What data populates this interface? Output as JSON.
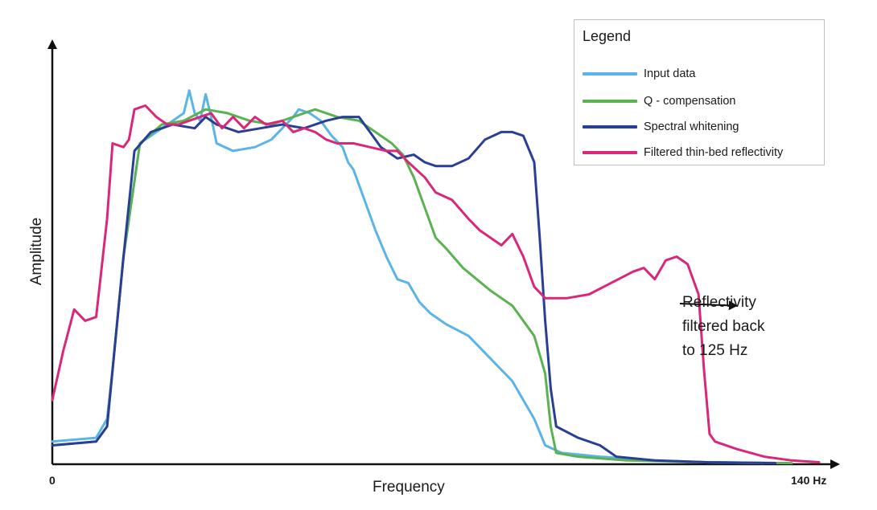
{
  "chart_data": {
    "type": "line",
    "title": "",
    "xlabel": "Frequency",
    "ylabel": "Amplitude",
    "x_ticks": [
      "0",
      "140 Hz"
    ],
    "xlim": [
      0,
      140
    ],
    "ylim": [
      0,
      1
    ],
    "grid": false,
    "legend": {
      "title": "Legend",
      "placement": "top-right"
    },
    "annotation": {
      "lines": [
        "Reflectivity",
        "filtered back",
        "to 125 Hz"
      ],
      "arrow_target_x": 125,
      "arrow_target_y": 0.42
    },
    "series": [
      {
        "name": "Input data",
        "color": "#5bb4e8",
        "points": [
          [
            0,
            0.06
          ],
          [
            8,
            0.07
          ],
          [
            10,
            0.12
          ],
          [
            11,
            0.25
          ],
          [
            13,
            0.55
          ],
          [
            16,
            0.85
          ],
          [
            19,
            0.88
          ],
          [
            22,
            0.91
          ],
          [
            24,
            0.93
          ],
          [
            25,
            0.99
          ],
          [
            26,
            0.93
          ],
          [
            27,
            0.91
          ],
          [
            28,
            0.98
          ],
          [
            29,
            0.92
          ],
          [
            30,
            0.85
          ],
          [
            33,
            0.83
          ],
          [
            37,
            0.84
          ],
          [
            40,
            0.86
          ],
          [
            42,
            0.89
          ],
          [
            44,
            0.92
          ],
          [
            45,
            0.94
          ],
          [
            47,
            0.93
          ],
          [
            49,
            0.91
          ],
          [
            51,
            0.87
          ],
          [
            53,
            0.84
          ],
          [
            54,
            0.8
          ],
          [
            55,
            0.78
          ],
          [
            57,
            0.7
          ],
          [
            59,
            0.62
          ],
          [
            61,
            0.55
          ],
          [
            63,
            0.49
          ],
          [
            65,
            0.48
          ],
          [
            67,
            0.43
          ],
          [
            69,
            0.4
          ],
          [
            72,
            0.37
          ],
          [
            76,
            0.34
          ],
          [
            80,
            0.28
          ],
          [
            84,
            0.22
          ],
          [
            88,
            0.12
          ],
          [
            90,
            0.05
          ],
          [
            93,
            0.03
          ],
          [
            100,
            0.02
          ],
          [
            110,
            0.01
          ],
          [
            120,
            0.005
          ],
          [
            130,
            0.003
          ]
        ]
      },
      {
        "name": "Q - compensation",
        "color": "#5ab250",
        "points": [
          [
            0,
            0.05
          ],
          [
            8,
            0.06
          ],
          [
            10,
            0.1
          ],
          [
            11,
            0.25
          ],
          [
            13,
            0.55
          ],
          [
            16,
            0.85
          ],
          [
            20,
            0.9
          ],
          [
            24,
            0.91
          ],
          [
            28,
            0.94
          ],
          [
            32,
            0.93
          ],
          [
            36,
            0.91
          ],
          [
            40,
            0.9
          ],
          [
            44,
            0.92
          ],
          [
            48,
            0.94
          ],
          [
            52,
            0.92
          ],
          [
            56,
            0.91
          ],
          [
            58,
            0.89
          ],
          [
            60,
            0.87
          ],
          [
            62,
            0.85
          ],
          [
            64,
            0.82
          ],
          [
            66,
            0.76
          ],
          [
            68,
            0.68
          ],
          [
            70,
            0.6
          ],
          [
            72,
            0.57
          ],
          [
            75,
            0.52
          ],
          [
            80,
            0.46
          ],
          [
            84,
            0.42
          ],
          [
            88,
            0.34
          ],
          [
            90,
            0.24
          ],
          [
            91,
            0.1
          ],
          [
            92,
            0.03
          ],
          [
            96,
            0.02
          ],
          [
            105,
            0.01
          ],
          [
            120,
            0.005
          ],
          [
            135,
            0.003
          ]
        ]
      },
      {
        "name": "Spectral whitening",
        "color": "#2b3e96",
        "points": [
          [
            0,
            0.05
          ],
          [
            8,
            0.06
          ],
          [
            10,
            0.1
          ],
          [
            11,
            0.25
          ],
          [
            13,
            0.55
          ],
          [
            15,
            0.83
          ],
          [
            18,
            0.88
          ],
          [
            22,
            0.9
          ],
          [
            26,
            0.89
          ],
          [
            28,
            0.92
          ],
          [
            30,
            0.9
          ],
          [
            34,
            0.88
          ],
          [
            38,
            0.89
          ],
          [
            42,
            0.9
          ],
          [
            46,
            0.89
          ],
          [
            50,
            0.91
          ],
          [
            53,
            0.92
          ],
          [
            56,
            0.92
          ],
          [
            58,
            0.88
          ],
          [
            60,
            0.84
          ],
          [
            63,
            0.81
          ],
          [
            66,
            0.82
          ],
          [
            68,
            0.8
          ],
          [
            70,
            0.79
          ],
          [
            73,
            0.79
          ],
          [
            76,
            0.81
          ],
          [
            79,
            0.86
          ],
          [
            82,
            0.88
          ],
          [
            84,
            0.88
          ],
          [
            86,
            0.87
          ],
          [
            88,
            0.8
          ],
          [
            89,
            0.6
          ],
          [
            90,
            0.38
          ],
          [
            91,
            0.2
          ],
          [
            92,
            0.1
          ],
          [
            96,
            0.07
          ],
          [
            100,
            0.05
          ],
          [
            103,
            0.02
          ],
          [
            110,
            0.01
          ],
          [
            120,
            0.005
          ],
          [
            132,
            0.003
          ]
        ]
      },
      {
        "name": "Filtered thin-bed reflectivity",
        "color": "#d9287a",
        "points": [
          [
            0,
            0.17
          ],
          [
            2,
            0.3
          ],
          [
            4,
            0.41
          ],
          [
            6,
            0.38
          ],
          [
            8,
            0.39
          ],
          [
            10,
            0.65
          ],
          [
            11,
            0.85
          ],
          [
            13,
            0.84
          ],
          [
            14,
            0.86
          ],
          [
            15,
            0.94
          ],
          [
            17,
            0.95
          ],
          [
            19,
            0.92
          ],
          [
            21,
            0.9
          ],
          [
            23,
            0.9
          ],
          [
            25,
            0.91
          ],
          [
            27,
            0.92
          ],
          [
            29,
            0.93
          ],
          [
            31,
            0.89
          ],
          [
            33,
            0.92
          ],
          [
            35,
            0.89
          ],
          [
            37,
            0.92
          ],
          [
            39,
            0.9
          ],
          [
            42,
            0.91
          ],
          [
            44,
            0.88
          ],
          [
            46,
            0.89
          ],
          [
            48,
            0.88
          ],
          [
            50,
            0.86
          ],
          [
            52,
            0.85
          ],
          [
            55,
            0.85
          ],
          [
            58,
            0.84
          ],
          [
            61,
            0.83
          ],
          [
            63,
            0.83
          ],
          [
            65,
            0.8
          ],
          [
            68,
            0.76
          ],
          [
            70,
            0.72
          ],
          [
            73,
            0.7
          ],
          [
            76,
            0.65
          ],
          [
            78,
            0.62
          ],
          [
            80,
            0.6
          ],
          [
            82,
            0.58
          ],
          [
            84,
            0.61
          ],
          [
            86,
            0.55
          ],
          [
            88,
            0.47
          ],
          [
            90,
            0.44
          ],
          [
            94,
            0.44
          ],
          [
            98,
            0.45
          ],
          [
            102,
            0.48
          ],
          [
            106,
            0.51
          ],
          [
            108,
            0.52
          ],
          [
            110,
            0.49
          ],
          [
            112,
            0.54
          ],
          [
            114,
            0.55
          ],
          [
            116,
            0.53
          ],
          [
            118,
            0.45
          ],
          [
            119,
            0.25
          ],
          [
            120,
            0.08
          ],
          [
            121,
            0.06
          ],
          [
            125,
            0.04
          ],
          [
            130,
            0.02
          ],
          [
            135,
            0.01
          ],
          [
            140,
            0.005
          ]
        ]
      }
    ]
  }
}
